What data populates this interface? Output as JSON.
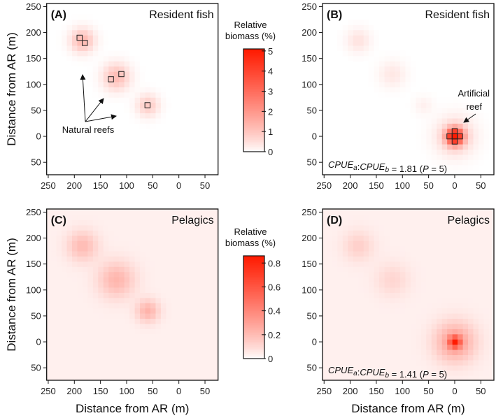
{
  "axis_label": "Distance from AR (m)",
  "chart_data": [
    {
      "type": "heatmap",
      "panel": "(A)",
      "title": "Resident fish",
      "xlim": [
        253,
        -75
      ],
      "ylim": [
        -74,
        256
      ],
      "x_ticks": [
        250,
        200,
        150,
        100,
        50,
        0,
        -50
      ],
      "x_tick_labels": [
        "250",
        "200",
        "150",
        "100",
        "50",
        "0",
        "50"
      ],
      "y_ticks": [
        250,
        200,
        150,
        100,
        50,
        0,
        -50
      ],
      "y_tick_labels": [
        "250",
        "200",
        "150",
        "100",
        "50",
        "0",
        "50"
      ],
      "xlabel": "",
      "ylabel": "Distance from AR (m)",
      "vmax": 5.1,
      "base": 0,
      "hotspots": [
        {
          "x": 185,
          "y": 185,
          "peak": 1.3,
          "sigma": 15
        },
        {
          "x": 120,
          "y": 115,
          "peak": 1.2,
          "sigma": 17
        },
        {
          "x": 60,
          "y": 60,
          "peak": 0.9,
          "sigma": 14
        }
      ],
      "markers": [
        [
          190,
          190
        ],
        [
          180,
          180
        ],
        [
          130,
          110
        ],
        [
          110,
          120
        ],
        [
          60,
          60
        ]
      ],
      "annotation": "Natural reefs",
      "ratio": null
    },
    {
      "type": "heatmap",
      "panel": "(B)",
      "title": "Resident fish",
      "xlim": [
        253,
        -75
      ],
      "ylim": [
        -74,
        256
      ],
      "x_ticks": [
        250,
        200,
        150,
        100,
        50,
        0,
        -50
      ],
      "x_tick_labels": [
        "250",
        "200",
        "150",
        "100",
        "50",
        "0",
        "50"
      ],
      "y_ticks": [
        250,
        200,
        150,
        100,
        50,
        0,
        -50
      ],
      "y_tick_labels": [
        "250",
        "200",
        "150",
        "100",
        "50",
        "0",
        "50"
      ],
      "xlabel": "",
      "ylabel": "",
      "vmax": 5.1,
      "base": 0,
      "hotspots": [
        {
          "x": 185,
          "y": 185,
          "peak": 0.45,
          "sigma": 15
        },
        {
          "x": 120,
          "y": 120,
          "peak": 0.35,
          "sigma": 17
        },
        {
          "x": 60,
          "y": 60,
          "peak": 0.2,
          "sigma": 12
        },
        {
          "x": 0,
          "y": 0,
          "peak": 5,
          "sigma": 11
        },
        {
          "x": 0,
          "y": 0,
          "peak": 0.9,
          "sigma": 24
        }
      ],
      "markers": [
        [
          0,
          0
        ],
        [
          10,
          0
        ],
        [
          -10,
          0
        ],
        [
          0,
          10
        ],
        [
          0,
          -10
        ]
      ],
      "annotation_lines": [
        "Artificial",
        "reef"
      ],
      "ratio": {
        "lhs_a": "CPUE",
        "sub_a": "a",
        "lhs_b": "CPUE",
        "sub_b": "b",
        "value": "= 1.81",
        "p": "P",
        "p_val": "= 5)",
        "open": "("
      }
    },
    {
      "type": "heatmap",
      "panel": "(C)",
      "title": "Pelagics",
      "xlim": [
        253,
        -75
      ],
      "ylim": [
        -74,
        256
      ],
      "x_ticks": [
        250,
        200,
        150,
        100,
        50,
        0,
        -50
      ],
      "x_tick_labels": [
        "250",
        "200",
        "150",
        "100",
        "50",
        "0",
        "50"
      ],
      "y_ticks": [
        250,
        200,
        150,
        100,
        50,
        0,
        -50
      ],
      "y_tick_labels": [
        "250",
        "200",
        "150",
        "100",
        "50",
        "0",
        "50"
      ],
      "xlabel": "Distance from AR (m)",
      "ylabel": "Distance from AR (m)",
      "vmax": 0.86,
      "base": 0.035,
      "hotspots": [
        {
          "x": 185,
          "y": 185,
          "peak": 0.17,
          "sigma": 20
        },
        {
          "x": 120,
          "y": 120,
          "peak": 0.19,
          "sigma": 24
        },
        {
          "x": 60,
          "y": 60,
          "peak": 0.2,
          "sigma": 15
        }
      ],
      "markers": [],
      "ratio": null
    },
    {
      "type": "heatmap",
      "panel": "(D)",
      "title": "Pelagics",
      "xlim": [
        253,
        -75
      ],
      "ylim": [
        -74,
        256
      ],
      "x_ticks": [
        250,
        200,
        150,
        100,
        50,
        0,
        -50
      ],
      "x_tick_labels": [
        "250",
        "200",
        "150",
        "100",
        "50",
        "0",
        "50"
      ],
      "y_ticks": [
        250,
        200,
        150,
        100,
        50,
        0,
        -50
      ],
      "y_tick_labels": [
        "250",
        "200",
        "150",
        "100",
        "50",
        "0",
        "50"
      ],
      "xlabel": "Distance from AR (m)",
      "ylabel": "",
      "vmax": 0.86,
      "base": 0.035,
      "hotspots": [
        {
          "x": 185,
          "y": 185,
          "peak": 0.1,
          "sigma": 20
        },
        {
          "x": 120,
          "y": 120,
          "peak": 0.08,
          "sigma": 22
        },
        {
          "x": 0,
          "y": 0,
          "peak": 0.55,
          "sigma": 8
        },
        {
          "x": 0,
          "y": 0,
          "peak": 0.28,
          "sigma": 26
        }
      ],
      "markers": [],
      "ratio": {
        "lhs_a": "CPUE",
        "sub_a": "a",
        "lhs_b": "CPUE",
        "sub_b": "b",
        "value": "= 1.41",
        "p": "P",
        "p_val": "= 5)",
        "open": "("
      }
    }
  ],
  "colorbars": [
    {
      "label_line1": "Relative",
      "label_line2": "biomass (%)",
      "vmax": 5.1,
      "ticks": [
        0,
        1,
        2,
        3,
        4,
        5
      ],
      "tick_labels": [
        "0",
        "1",
        "2",
        "3",
        "4",
        "5"
      ]
    },
    {
      "label_line1": "Relative",
      "label_line2": "biomass (%)",
      "vmax": 0.86,
      "ticks": [
        0,
        0.2,
        0.4,
        0.6,
        0.8
      ],
      "tick_labels": [
        "0",
        "0.2",
        "0.4",
        "0.6",
        "0.8"
      ]
    }
  ],
  "colors": {
    "low": "#ffffff",
    "high": "#ff1a00",
    "frame": "#111111"
  }
}
